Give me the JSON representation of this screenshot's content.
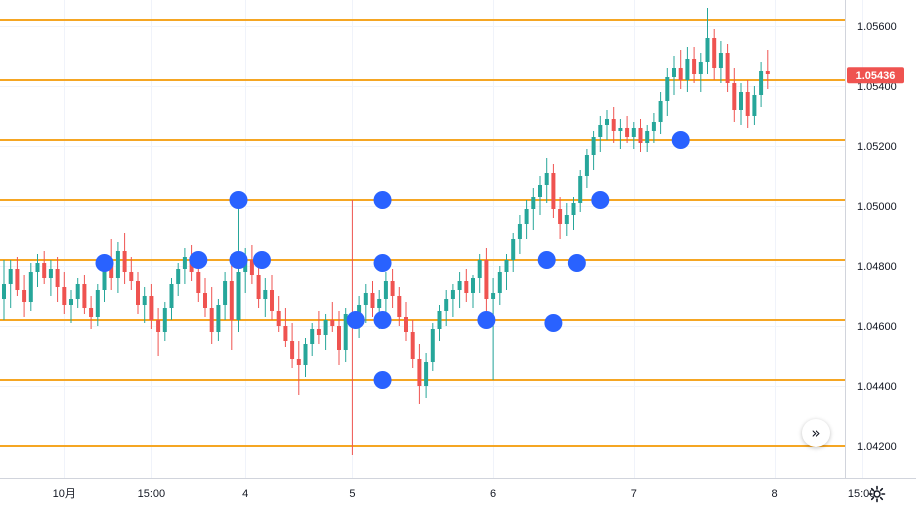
{
  "chart_data": {
    "type": "candlestick",
    "symbol_note": "",
    "title": "",
    "ylim": [
      1.0417,
      1.0566
    ],
    "y_ticks": [
      "1.05600",
      "1.05400",
      "1.05200",
      "1.05000",
      "1.04800",
      "1.04600",
      "1.04400",
      "1.04200"
    ],
    "x_ticks": [
      {
        "label": "10月",
        "index": 9
      },
      {
        "label": "15:00",
        "index": 22
      },
      {
        "label": "4",
        "index": 36
      },
      {
        "label": "5",
        "index": 52
      },
      {
        "label": "6",
        "index": 73
      },
      {
        "label": "7",
        "index": 94
      },
      {
        "label": "8",
        "index": 115
      },
      {
        "label": "15:00",
        "index": 128
      }
    ],
    "last_price": "1.05436",
    "horizontal_levels": [
      1.0562,
      1.0542,
      1.0522,
      1.0502,
      1.0482,
      1.0462,
      1.0442,
      1.042
    ],
    "level_color": "#f5a623",
    "up_color": "#26a69a",
    "down_color": "#ef5350",
    "marker_color": "#2962ff",
    "markers": [
      {
        "index": 15,
        "price": 1.0481
      },
      {
        "index": 29,
        "price": 1.0482
      },
      {
        "index": 35,
        "price": 1.0502
      },
      {
        "index": 35,
        "price": 1.0482
      },
      {
        "index": 38.5,
        "price": 1.0482
      },
      {
        "index": 52.5,
        "price": 1.0462
      },
      {
        "index": 56.5,
        "price": 1.0502
      },
      {
        "index": 56.5,
        "price": 1.0481
      },
      {
        "index": 56.5,
        "price": 1.0462
      },
      {
        "index": 56.5,
        "price": 1.0442
      },
      {
        "index": 72,
        "price": 1.0462
      },
      {
        "index": 81,
        "price": 1.0482
      },
      {
        "index": 82,
        "price": 1.0461
      },
      {
        "index": 85.5,
        "price": 1.0481
      },
      {
        "index": 89,
        "price": 1.0502
      },
      {
        "index": 101,
        "price": 1.0522
      }
    ],
    "candles": [
      [
        1.0469,
        1.0482,
        1.0462,
        1.0474
      ],
      [
        1.0474,
        1.0482,
        1.0466,
        1.0479
      ],
      [
        1.0479,
        1.0483,
        1.047,
        1.0472
      ],
      [
        1.0472,
        1.0477,
        1.0463,
        1.0468
      ],
      [
        1.0468,
        1.0481,
        1.0465,
        1.0478
      ],
      [
        1.0478,
        1.0484,
        1.0473,
        1.0481
      ],
      [
        1.0481,
        1.0485,
        1.0474,
        1.0476
      ],
      [
        1.0476,
        1.0482,
        1.047,
        1.0479
      ],
      [
        1.0479,
        1.0483,
        1.0468,
        1.0473
      ],
      [
        1.0473,
        1.0478,
        1.0464,
        1.0467
      ],
      [
        1.0467,
        1.0472,
        1.0461,
        1.0469
      ],
      [
        1.0469,
        1.0476,
        1.0466,
        1.0474
      ],
      [
        1.0474,
        1.0477,
        1.0464,
        1.0466
      ],
      [
        1.0466,
        1.047,
        1.0459,
        1.0463
      ],
      [
        1.0463,
        1.0474,
        1.046,
        1.0472
      ],
      [
        1.0472,
        1.0484,
        1.0468,
        1.0481
      ],
      [
        1.0481,
        1.0489,
        1.0472,
        1.0476
      ],
      [
        1.0476,
        1.0488,
        1.0471,
        1.0485
      ],
      [
        1.0485,
        1.0491,
        1.0474,
        1.0478
      ],
      [
        1.0478,
        1.0483,
        1.0472,
        1.0475
      ],
      [
        1.0475,
        1.0478,
        1.0464,
        1.0467
      ],
      [
        1.0467,
        1.0473,
        1.0461,
        1.047
      ],
      [
        1.047,
        1.0474,
        1.0459,
        1.0462
      ],
      [
        1.0462,
        1.0466,
        1.045,
        1.0458
      ],
      [
        1.0458,
        1.0468,
        1.0455,
        1.0466
      ],
      [
        1.0466,
        1.0476,
        1.0462,
        1.0474
      ],
      [
        1.0474,
        1.0481,
        1.047,
        1.0479
      ],
      [
        1.0479,
        1.0486,
        1.0474,
        1.0483
      ],
      [
        1.0483,
        1.0487,
        1.0475,
        1.0478
      ],
      [
        1.0478,
        1.0484,
        1.0468,
        1.0471
      ],
      [
        1.0471,
        1.0476,
        1.0463,
        1.0466
      ],
      [
        1.0466,
        1.0473,
        1.0454,
        1.0458
      ],
      [
        1.0458,
        1.0469,
        1.0455,
        1.0467
      ],
      [
        1.0467,
        1.0478,
        1.0462,
        1.0475
      ],
      [
        1.0475,
        1.0484,
        1.0452,
        1.0462
      ],
      [
        1.0462,
        1.0502,
        1.0458,
        1.0478
      ],
      [
        1.0478,
        1.0486,
        1.0471,
        1.0482
      ],
      [
        1.0482,
        1.0487,
        1.0474,
        1.0477
      ],
      [
        1.0477,
        1.0481,
        1.0466,
        1.0469
      ],
      [
        1.0469,
        1.0476,
        1.0463,
        1.0472
      ],
      [
        1.0472,
        1.0477,
        1.0462,
        1.0465
      ],
      [
        1.0465,
        1.047,
        1.0458,
        1.046
      ],
      [
        1.046,
        1.0466,
        1.0453,
        1.0455
      ],
      [
        1.0455,
        1.0461,
        1.0446,
        1.0449
      ],
      [
        1.0449,
        1.0455,
        1.0437,
        1.0447
      ],
      [
        1.0447,
        1.0456,
        1.0443,
        1.0454
      ],
      [
        1.0454,
        1.0461,
        1.045,
        1.0459
      ],
      [
        1.0459,
        1.0465,
        1.0454,
        1.0457
      ],
      [
        1.0457,
        1.0464,
        1.0452,
        1.0462
      ],
      [
        1.0462,
        1.0468,
        1.0458,
        1.046
      ],
      [
        1.046,
        1.0465,
        1.0447,
        1.0452
      ],
      [
        1.0452,
        1.0466,
        1.0448,
        1.0464
      ],
      [
        1.0464,
        1.0502,
        1.0417,
        1.0461
      ],
      [
        1.0461,
        1.047,
        1.0456,
        1.0467
      ],
      [
        1.0467,
        1.0474,
        1.0461,
        1.0471
      ],
      [
        1.0471,
        1.0475,
        1.0463,
        1.0466
      ],
      [
        1.0466,
        1.0472,
        1.0459,
        1.0469
      ],
      [
        1.0469,
        1.0478,
        1.0464,
        1.0475
      ],
      [
        1.0475,
        1.0479,
        1.0466,
        1.047
      ],
      [
        1.047,
        1.0473,
        1.046,
        1.0463
      ],
      [
        1.0463,
        1.0468,
        1.0455,
        1.0458
      ],
      [
        1.0458,
        1.0462,
        1.0446,
        1.0449
      ],
      [
        1.0449,
        1.0454,
        1.0434,
        1.044
      ],
      [
        1.044,
        1.0451,
        1.0436,
        1.0448
      ],
      [
        1.0448,
        1.0461,
        1.0445,
        1.0459
      ],
      [
        1.0459,
        1.0467,
        1.0455,
        1.0465
      ],
      [
        1.0465,
        1.0472,
        1.046,
        1.0469
      ],
      [
        1.0469,
        1.0474,
        1.0463,
        1.0472
      ],
      [
        1.0472,
        1.0478,
        1.0466,
        1.0475
      ],
      [
        1.0475,
        1.0479,
        1.0468,
        1.0471
      ],
      [
        1.0471,
        1.0477,
        1.0466,
        1.0476
      ],
      [
        1.0476,
        1.0484,
        1.0471,
        1.0482
      ],
      [
        1.0482,
        1.0486,
        1.0465,
        1.0469
      ],
      [
        1.0469,
        1.0476,
        1.0442,
        1.0471
      ],
      [
        1.0471,
        1.048,
        1.0467,
        1.0478
      ],
      [
        1.0478,
        1.0484,
        1.0472,
        1.0482
      ],
      [
        1.0482,
        1.0491,
        1.0478,
        1.0489
      ],
      [
        1.0489,
        1.0497,
        1.0484,
        1.0494
      ],
      [
        1.0494,
        1.0502,
        1.0489,
        1.0499
      ],
      [
        1.0499,
        1.0506,
        1.0492,
        1.0503
      ],
      [
        1.0503,
        1.051,
        1.0497,
        1.0507
      ],
      [
        1.0507,
        1.0516,
        1.0501,
        1.0511
      ],
      [
        1.0511,
        1.0514,
        1.0496,
        1.0499
      ],
      [
        1.0499,
        1.0503,
        1.0489,
        1.0494
      ],
      [
        1.0494,
        1.0501,
        1.049,
        1.0497
      ],
      [
        1.0497,
        1.0503,
        1.0492,
        1.0501
      ],
      [
        1.0501,
        1.0512,
        1.0498,
        1.051
      ],
      [
        1.051,
        1.0519,
        1.0506,
        1.0517
      ],
      [
        1.0517,
        1.0525,
        1.0512,
        1.0523
      ],
      [
        1.0523,
        1.053,
        1.0518,
        1.0527
      ],
      [
        1.0527,
        1.0532,
        1.0522,
        1.0529
      ],
      [
        1.0529,
        1.0533,
        1.0521,
        1.0525
      ],
      [
        1.0525,
        1.0529,
        1.0519,
        1.0526
      ],
      [
        1.0526,
        1.053,
        1.0521,
        1.0523
      ],
      [
        1.0523,
        1.0528,
        1.0519,
        1.0526
      ],
      [
        1.0526,
        1.0529,
        1.0518,
        1.0521
      ],
      [
        1.0521,
        1.0527,
        1.0518,
        1.0525
      ],
      [
        1.0525,
        1.0531,
        1.0521,
        1.0528
      ],
      [
        1.0528,
        1.0538,
        1.0524,
        1.0535
      ],
      [
        1.0535,
        1.0546,
        1.053,
        1.0543
      ],
      [
        1.0543,
        1.055,
        1.0537,
        1.0546
      ],
      [
        1.0546,
        1.0552,
        1.0539,
        1.0542
      ],
      [
        1.0542,
        1.0553,
        1.0538,
        1.0549
      ],
      [
        1.0549,
        1.0553,
        1.0541,
        1.0544
      ],
      [
        1.0544,
        1.0551,
        1.0538,
        1.0548
      ],
      [
        1.0548,
        1.0566,
        1.0544,
        1.0556
      ],
      [
        1.0556,
        1.0559,
        1.0542,
        1.0546
      ],
      [
        1.0546,
        1.0555,
        1.0541,
        1.0551
      ],
      [
        1.0551,
        1.0554,
        1.0538,
        1.0541
      ],
      [
        1.0541,
        1.0546,
        1.0528,
        1.0532
      ],
      [
        1.0532,
        1.0541,
        1.0527,
        1.0538
      ],
      [
        1.0538,
        1.0542,
        1.0526,
        1.053
      ],
      [
        1.053,
        1.054,
        1.0527,
        1.0537
      ],
      [
        1.0537,
        1.0548,
        1.0533,
        1.0545
      ],
      [
        1.0545,
        1.0552,
        1.0539,
        1.0544
      ]
    ]
  },
  "ui": {
    "scroll_icon_glyph": "»",
    "settings_icon": "gear-icon"
  }
}
